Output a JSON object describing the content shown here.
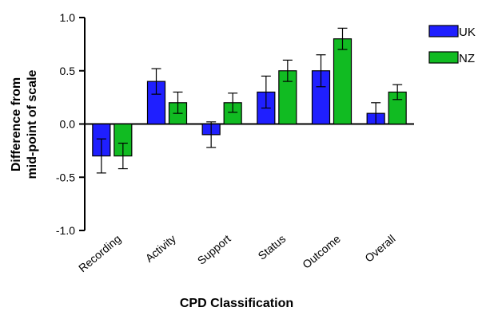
{
  "chart_data": {
    "type": "bar",
    "title": "",
    "xlabel": "CPD Classification",
    "ylabel_lines": [
      "Difference from",
      "mid-point of scale"
    ],
    "ylim": [
      -1.0,
      1.0
    ],
    "yticks": [
      -1.0,
      -0.5,
      0.0,
      0.5,
      1.0
    ],
    "ytick_labels": [
      "-1.0",
      "-0.5",
      "0.0",
      "0.5",
      "1.0"
    ],
    "categories": [
      "Recording",
      "Activity",
      "Support",
      "Status",
      "Outcome",
      "Overall"
    ],
    "legend_position": "top-right",
    "grid": false,
    "series": [
      {
        "name": "UK",
        "color": "#1f1fff",
        "values": [
          -0.3,
          0.4,
          -0.1,
          0.3,
          0.5,
          0.1
        ],
        "errors": [
          0.16,
          0.12,
          0.12,
          0.15,
          0.15,
          0.1
        ]
      },
      {
        "name": "NZ",
        "color": "#11bb22",
        "values": [
          -0.3,
          0.2,
          0.2,
          0.5,
          0.8,
          0.3
        ],
        "errors": [
          0.12,
          0.1,
          0.09,
          0.1,
          0.1,
          0.07
        ]
      }
    ]
  }
}
